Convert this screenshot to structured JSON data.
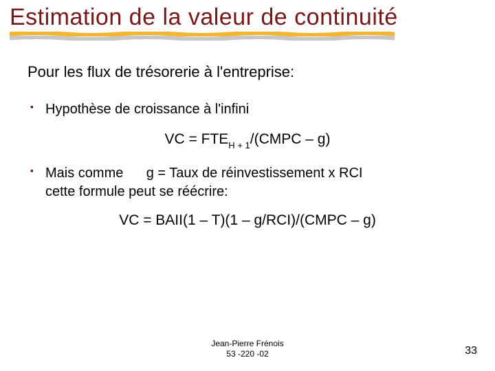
{
  "colors": {
    "title": "#7a1616",
    "underline_main": "#f2b431",
    "underline_shadow": "#c7c7c7",
    "bullet": "#7a1616",
    "text": "#000000",
    "footer": "#000000",
    "background": "#ffffff"
  },
  "typography": {
    "title_fontsize": 34,
    "intro_fontsize": 22,
    "bullet_fontsize": 20,
    "formula_fontsize": 21,
    "footer_fontsize": 12,
    "pagenum_fontsize": 16
  },
  "title": "Estimation de la valeur de continuité",
  "intro": "Pour les flux de trésorerie à l'entreprise:",
  "bullets": {
    "b1": "Hypothèse de croissance à l'infini",
    "b2_line1": "Mais comme      g = Taux de réinvestissement x RCI",
    "b2_line2": "cette formule peut se réécrire:"
  },
  "formula1": {
    "pre": "VC = FTE",
    "sub": "H + 1",
    "post": "/(CMPC – g)"
  },
  "formula2": "VC = BAII(1 – T)(1 – g/RCI)/(CMPC – g)",
  "footer": {
    "line1": "Jean-Pierre Frénois",
    "line2": "53 -220 -02"
  },
  "page_number": "33"
}
